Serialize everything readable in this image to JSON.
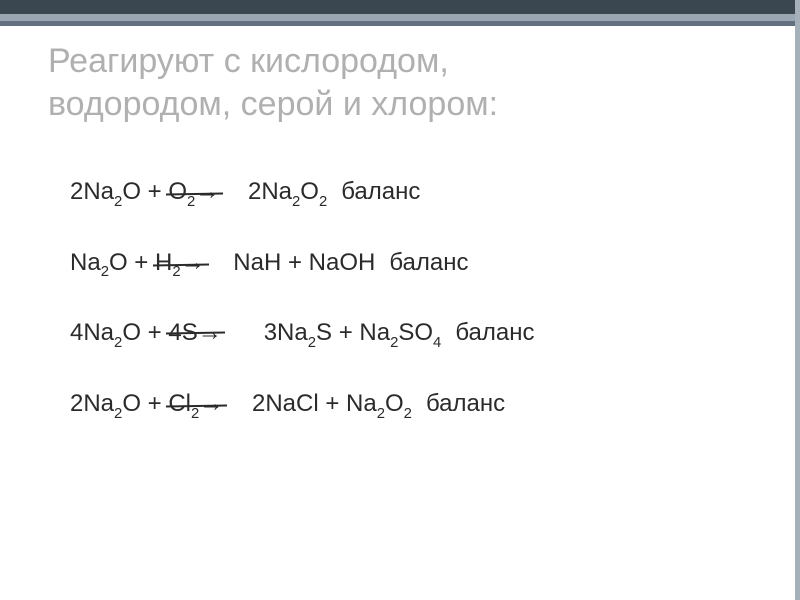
{
  "colors": {
    "bar1": "#3a4650",
    "bar2": "#9aa6b1",
    "bar3": "#627080",
    "title_color": "#b0b0b0",
    "text_color": "#2b2b2b",
    "background": "#ffffff",
    "right_edge": "#a6b0ba"
  },
  "title": {
    "line1": "Реагируют с кислородом,",
    "line2": "водородом, серой и хлором:",
    "fontsize": 34
  },
  "eq_fontsize": 24,
  "balance_word": "баланс",
  "equations": {
    "r1": {
      "lhs_a1": "2Na",
      "lhs_a1_sub": "2",
      "lhs_a2": "O",
      "plus": " + ",
      "lhs_b1": "O",
      "lhs_b1_sub": "2",
      "arrow": "→",
      "rhs_a1": "    2Na",
      "rhs_a1_sub": "2",
      "rhs_a2": "O",
      "rhs_a2_sub": "2"
    },
    "r2": {
      "lhs_a1": "Na",
      "lhs_a1_sub": "2",
      "lhs_a2": "O",
      "plus": " + ",
      "lhs_b1": "H",
      "lhs_b1_sub": "2",
      "arrow": "→",
      "rhs_text": "    NaH + NaOH"
    },
    "r3": {
      "lhs_a1": "4Na",
      "lhs_a1_sub": "2",
      "lhs_a2": "O",
      "plus": " + ",
      "lhs_b1": "4S",
      "arrow": "→",
      "rhs_a1": "      3Na",
      "rhs_a1_sub": "2",
      "rhs_a2": "S + Na",
      "rhs_a2_sub": "2",
      "rhs_a3": "SO",
      "rhs_a3_sub": "4"
    },
    "r4": {
      "lhs_a1": "2Na",
      "lhs_a1_sub": "2",
      "lhs_a2": "O",
      "plus": " + ",
      "lhs_b1": "Cl",
      "lhs_b1_sub": "2",
      "arrow": "→",
      "rhs_a1": "    2NaCl + Na",
      "rhs_a1_sub": "2",
      "rhs_a2": "O",
      "rhs_a2_sub": "2"
    }
  }
}
